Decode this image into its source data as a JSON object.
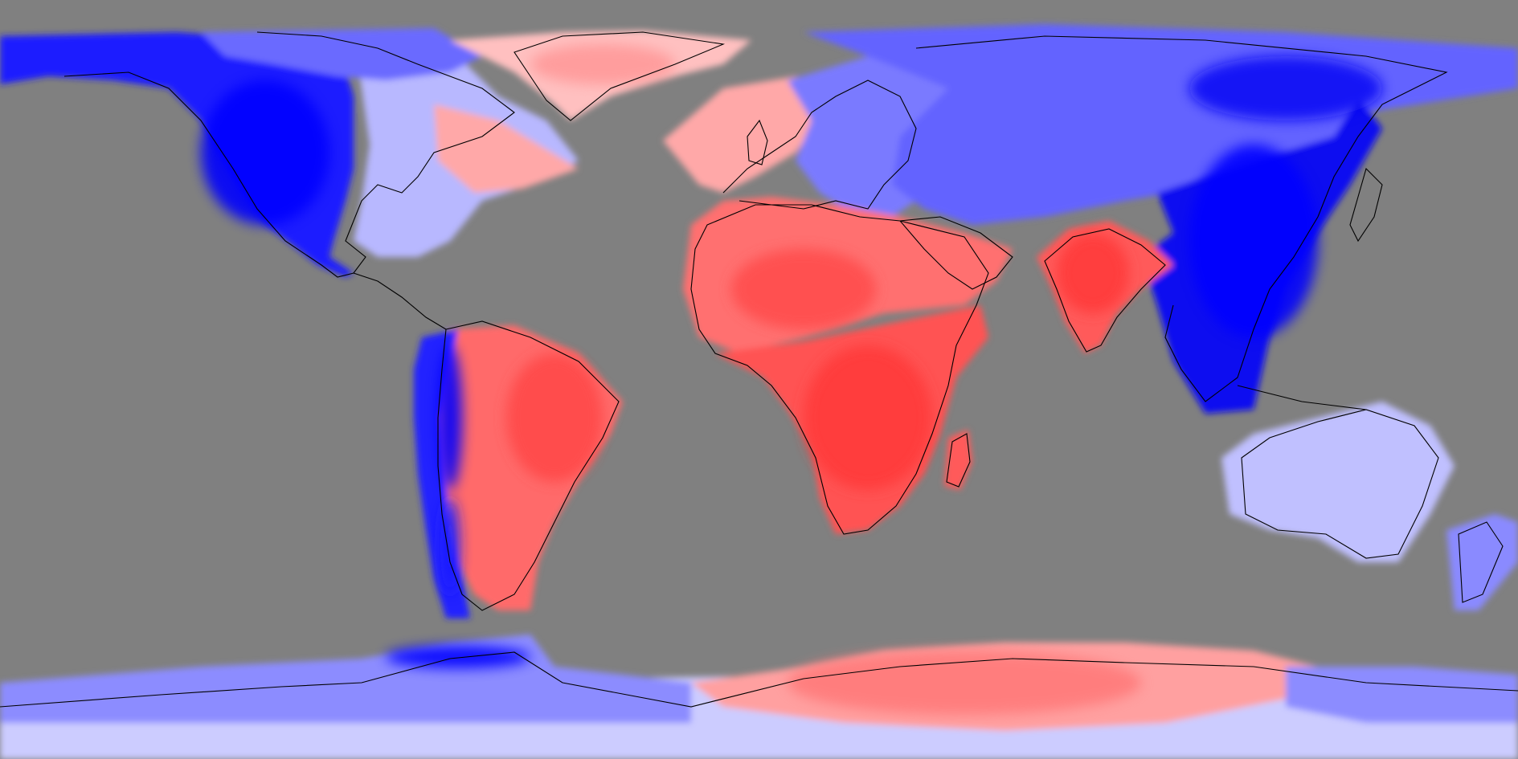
{
  "map": {
    "projection": "equirectangular",
    "lon_range": [
      -180,
      180
    ],
    "lat_range": [
      -90,
      90
    ],
    "background_color": "#808080",
    "coastline_color": "#000000",
    "colormap": {
      "type": "diverging",
      "low": "#0000ff",
      "mid": "#ffffff",
      "high": "#ff3b3b"
    },
    "regions": [
      {
        "name": "north-america-west",
        "tone": "strong-blue",
        "color": "#1a1aff"
      },
      {
        "name": "north-america-east",
        "tone": "light-blue",
        "color": "#b8b8ff"
      },
      {
        "name": "canadian-arctic",
        "tone": "medium-blue",
        "color": "#6a6aff"
      },
      {
        "name": "greenland",
        "tone": "light-red",
        "color": "#ffc0c0"
      },
      {
        "name": "north-atlantic",
        "tone": "light-red",
        "color": "#ffa8a8"
      },
      {
        "name": "europe",
        "tone": "medium-blue",
        "color": "#7a7aff"
      },
      {
        "name": "siberia",
        "tone": "medium-blue",
        "color": "#6464ff"
      },
      {
        "name": "east-asia",
        "tone": "strong-blue",
        "color": "#1010f0"
      },
      {
        "name": "south-asia",
        "tone": "red",
        "color": "#ff5a5a"
      },
      {
        "name": "north-africa",
        "tone": "red",
        "color": "#ff7070"
      },
      {
        "name": "sub-saharan-africa",
        "tone": "red",
        "color": "#ff5252"
      },
      {
        "name": "madagascar",
        "tone": "red",
        "color": "#ff5a5a"
      },
      {
        "name": "south-america",
        "tone": "red",
        "color": "#ff6a6a"
      },
      {
        "name": "andes",
        "tone": "strong-blue",
        "color": "#2020ff"
      },
      {
        "name": "australia",
        "tone": "light-blue",
        "color": "#c0c0ff"
      },
      {
        "name": "new-zealand",
        "tone": "medium-blue",
        "color": "#8a8aff"
      },
      {
        "name": "antarctica-west",
        "tone": "medium-blue",
        "color": "#8c8cff"
      },
      {
        "name": "antarctica-east",
        "tone": "light-red",
        "color": "#ffa0a0"
      },
      {
        "name": "southern-ocean-rim",
        "tone": "light-blue",
        "color": "#ccccff"
      }
    ]
  }
}
